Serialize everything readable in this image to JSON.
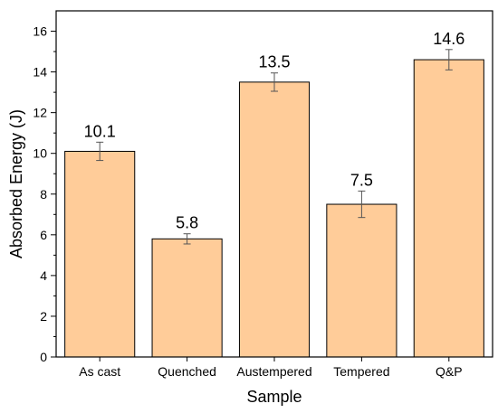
{
  "chart_data": {
    "type": "bar",
    "categories": [
      "As cast",
      "Quenched",
      "Austempered",
      "Tempered",
      "Q&P"
    ],
    "values": [
      10.1,
      5.8,
      13.5,
      7.5,
      14.6
    ],
    "errors": [
      0.45,
      0.25,
      0.45,
      0.65,
      0.5
    ],
    "data_labels": [
      "10.1",
      "5.8",
      "13.5",
      "7.5",
      "14.6"
    ],
    "xlabel": "Sample",
    "ylabel": "Absorbed Energy (J)",
    "ylim": [
      0,
      17
    ],
    "yticks": [
      0,
      2,
      4,
      6,
      8,
      10,
      12,
      14,
      16
    ],
    "grid": false,
    "bar_color": "#FFCC99"
  }
}
